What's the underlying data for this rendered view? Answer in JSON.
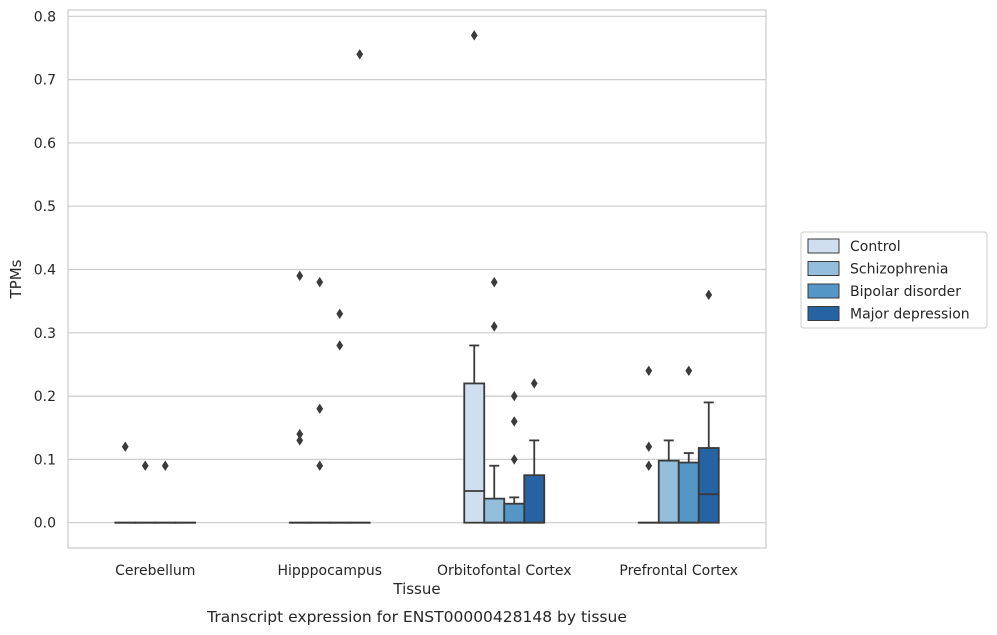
{
  "chart_data": {
    "type": "box",
    "title": "",
    "caption": "Transcript expression for ENST00000428148 by tissue",
    "xlabel": "Tissue",
    "ylabel": "TPMs",
    "ylim": [
      -0.04,
      0.81
    ],
    "yticks": [
      0.0,
      0.1,
      0.2,
      0.3,
      0.4,
      0.5,
      0.6,
      0.7,
      0.8
    ],
    "ytick_labels": [
      "0.0",
      "0.1",
      "0.2",
      "0.3",
      "0.4",
      "0.5",
      "0.6",
      "0.7",
      "0.8"
    ],
    "grid": "horizontal",
    "legend_position": "right",
    "categories": [
      "Cerebellum",
      "Hipppocampus",
      "Orbitofontal Cortex",
      "Prefrontal Cortex"
    ],
    "series": [
      {
        "name": "Control",
        "color": "#cfdff0",
        "boxes": [
          {
            "q1": 0.0,
            "median": 0.0,
            "q3": 0.0,
            "whisker_low": 0.0,
            "whisker_high": 0.0,
            "outliers": [
              0.12
            ]
          },
          {
            "q1": 0.0,
            "median": 0.0,
            "q3": 0.0,
            "whisker_low": 0.0,
            "whisker_high": 0.0,
            "outliers": [
              0.39,
              0.14,
              0.13
            ]
          },
          {
            "q1": 0.0,
            "median": 0.05,
            "q3": 0.22,
            "whisker_low": 0.0,
            "whisker_high": 0.28,
            "outliers": [
              0.77
            ]
          },
          {
            "q1": 0.0,
            "median": 0.0,
            "q3": 0.0,
            "whisker_low": 0.0,
            "whisker_high": 0.0,
            "outliers": [
              0.24,
              0.12,
              0.09
            ]
          }
        ]
      },
      {
        "name": "Schizophrenia",
        "color": "#94bfdc",
        "boxes": [
          {
            "q1": 0.0,
            "median": 0.0,
            "q3": 0.0,
            "whisker_low": 0.0,
            "whisker_high": 0.0,
            "outliers": [
              0.09
            ]
          },
          {
            "q1": 0.0,
            "median": 0.0,
            "q3": 0.0,
            "whisker_low": 0.0,
            "whisker_high": 0.0,
            "outliers": [
              0.38,
              0.18,
              0.09
            ]
          },
          {
            "q1": 0.0,
            "median": 0.0,
            "q3": 0.038,
            "whisker_low": 0.0,
            "whisker_high": 0.09,
            "outliers": [
              0.38,
              0.31
            ]
          },
          {
            "q1": 0.0,
            "median": 0.0,
            "q3": 0.098,
            "whisker_low": 0.0,
            "whisker_high": 0.13,
            "outliers": []
          }
        ]
      },
      {
        "name": "Bipolar disorder",
        "color": "#5496c6",
        "boxes": [
          {
            "q1": 0.0,
            "median": 0.0,
            "q3": 0.0,
            "whisker_low": 0.0,
            "whisker_high": 0.0,
            "outliers": [
              0.09
            ]
          },
          {
            "q1": 0.0,
            "median": 0.0,
            "q3": 0.0,
            "whisker_low": 0.0,
            "whisker_high": 0.0,
            "outliers": [
              0.33,
              0.28
            ]
          },
          {
            "q1": 0.0,
            "median": 0.0,
            "q3": 0.03,
            "whisker_low": 0.0,
            "whisker_high": 0.04,
            "outliers": [
              0.2,
              0.16,
              0.1
            ]
          },
          {
            "q1": 0.0,
            "median": 0.0,
            "q3": 0.095,
            "whisker_low": 0.0,
            "whisker_high": 0.11,
            "outliers": [
              0.24
            ]
          }
        ]
      },
      {
        "name": "Major depression",
        "color": "#2563a3",
        "boxes": [
          {
            "q1": 0.0,
            "median": 0.0,
            "q3": 0.0,
            "whisker_low": 0.0,
            "whisker_high": 0.0,
            "outliers": []
          },
          {
            "q1": 0.0,
            "median": 0.0,
            "q3": 0.0,
            "whisker_low": 0.0,
            "whisker_high": 0.0,
            "outliers": [
              0.74
            ]
          },
          {
            "q1": 0.0,
            "median": 0.0,
            "q3": 0.075,
            "whisker_low": 0.0,
            "whisker_high": 0.13,
            "outliers": [
              0.22
            ]
          },
          {
            "q1": 0.0,
            "median": 0.045,
            "q3": 0.118,
            "whisker_low": 0.0,
            "whisker_high": 0.19,
            "outliers": [
              0.36
            ]
          }
        ]
      }
    ]
  }
}
